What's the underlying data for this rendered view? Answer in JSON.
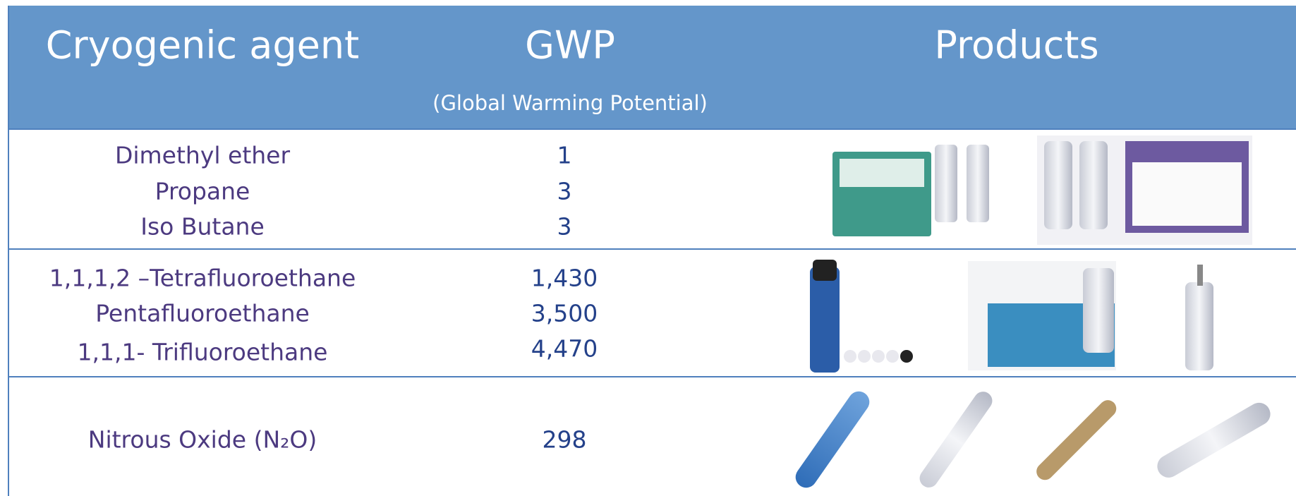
{
  "header": {
    "agent": "Cryogenic agent",
    "gwp": "GWP",
    "gwp_note": "(Global Warming Potential)",
    "products": "Products"
  },
  "rows": [
    {
      "agents": [
        "Dimethyl ether",
        "Propane",
        "Iso Butane"
      ],
      "gwp": [
        "1",
        "3",
        "3"
      ]
    },
    {
      "agents": [
        "1,1,1,2 –Tetrafluoroethane",
        "Pentafluoroethane",
        "1,1,1- Trifluoroethane"
      ],
      "gwp": [
        "1,430",
        "3,500",
        "4,470"
      ]
    },
    {
      "agents": [
        "Nitrous Oxide (N₂O)"
      ],
      "gwp": [
        "298"
      ]
    }
  ]
}
